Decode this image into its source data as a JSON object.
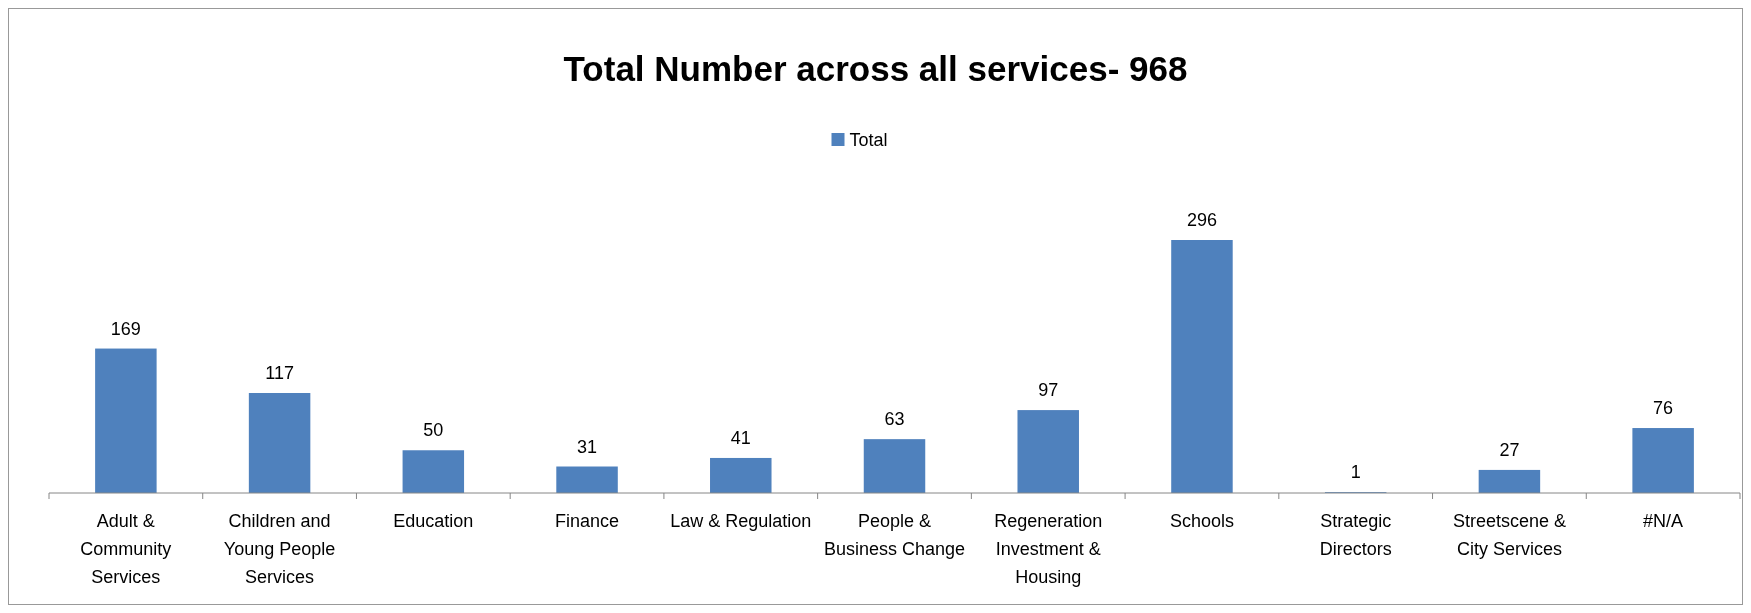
{
  "chart_data": {
    "type": "bar",
    "title": "Total Number across all services- 968",
    "categories": [
      "Adult & Community Services",
      "Children and Young People Services",
      "Education",
      "Finance",
      "Law & Regulation",
      "People & Business Change",
      "Regeneration Investment & Housing",
      "Schools",
      "Strategic Directors",
      "Streetscene & City Services",
      "#N/A"
    ],
    "series": [
      {
        "name": "Total",
        "color": "#4f81bd",
        "values": [
          169,
          117,
          50,
          31,
          41,
          63,
          97,
          296,
          1,
          27,
          76
        ]
      }
    ],
    "data_labels": true,
    "legend": "top",
    "grid": false
  }
}
